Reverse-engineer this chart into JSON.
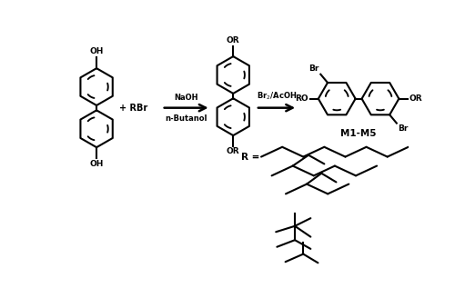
{
  "bg_color": "#ffffff",
  "line_color": "#000000",
  "line_width": 1.5,
  "fig_width": 5.0,
  "fig_height": 3.28,
  "dpi": 100,
  "xlim": [
    0,
    5.0
  ],
  "ylim": [
    0,
    3.28
  ]
}
